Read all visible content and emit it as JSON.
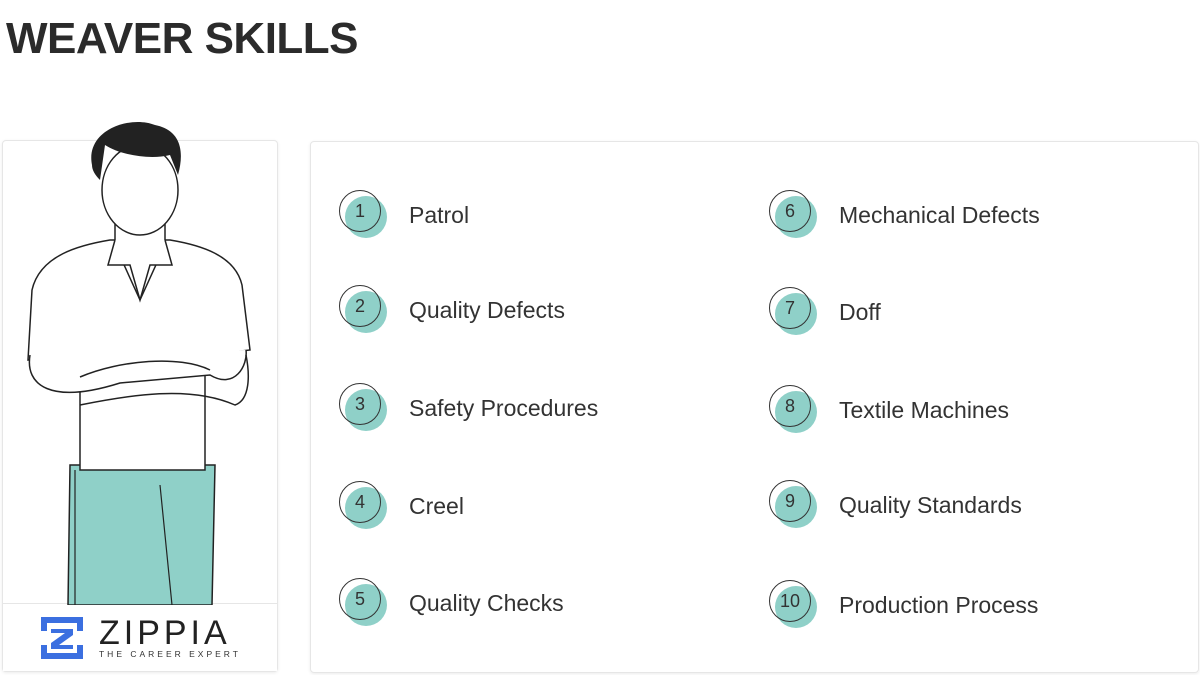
{
  "title": "WEAVER SKILLS",
  "skills": [
    {
      "num": "1",
      "label": "Patrol"
    },
    {
      "num": "2",
      "label": "Quality Defects"
    },
    {
      "num": "3",
      "label": "Safety Procedures"
    },
    {
      "num": "4",
      "label": "Creel"
    },
    {
      "num": "5",
      "label": "Quality Checks"
    },
    {
      "num": "6",
      "label": "Mechanical Defects"
    },
    {
      "num": "7",
      "label": "Doff"
    },
    {
      "num": "8",
      "label": "Textile Machines"
    },
    {
      "num": "9",
      "label": "Quality Standards"
    },
    {
      "num": "10",
      "label": "Production Process"
    }
  ],
  "logo": {
    "name": "ZIPPIA",
    "tagline": "THE CAREER EXPERT"
  },
  "colors": {
    "accent": "#8fd0c8",
    "logo_blue": "#3b6fe0"
  }
}
